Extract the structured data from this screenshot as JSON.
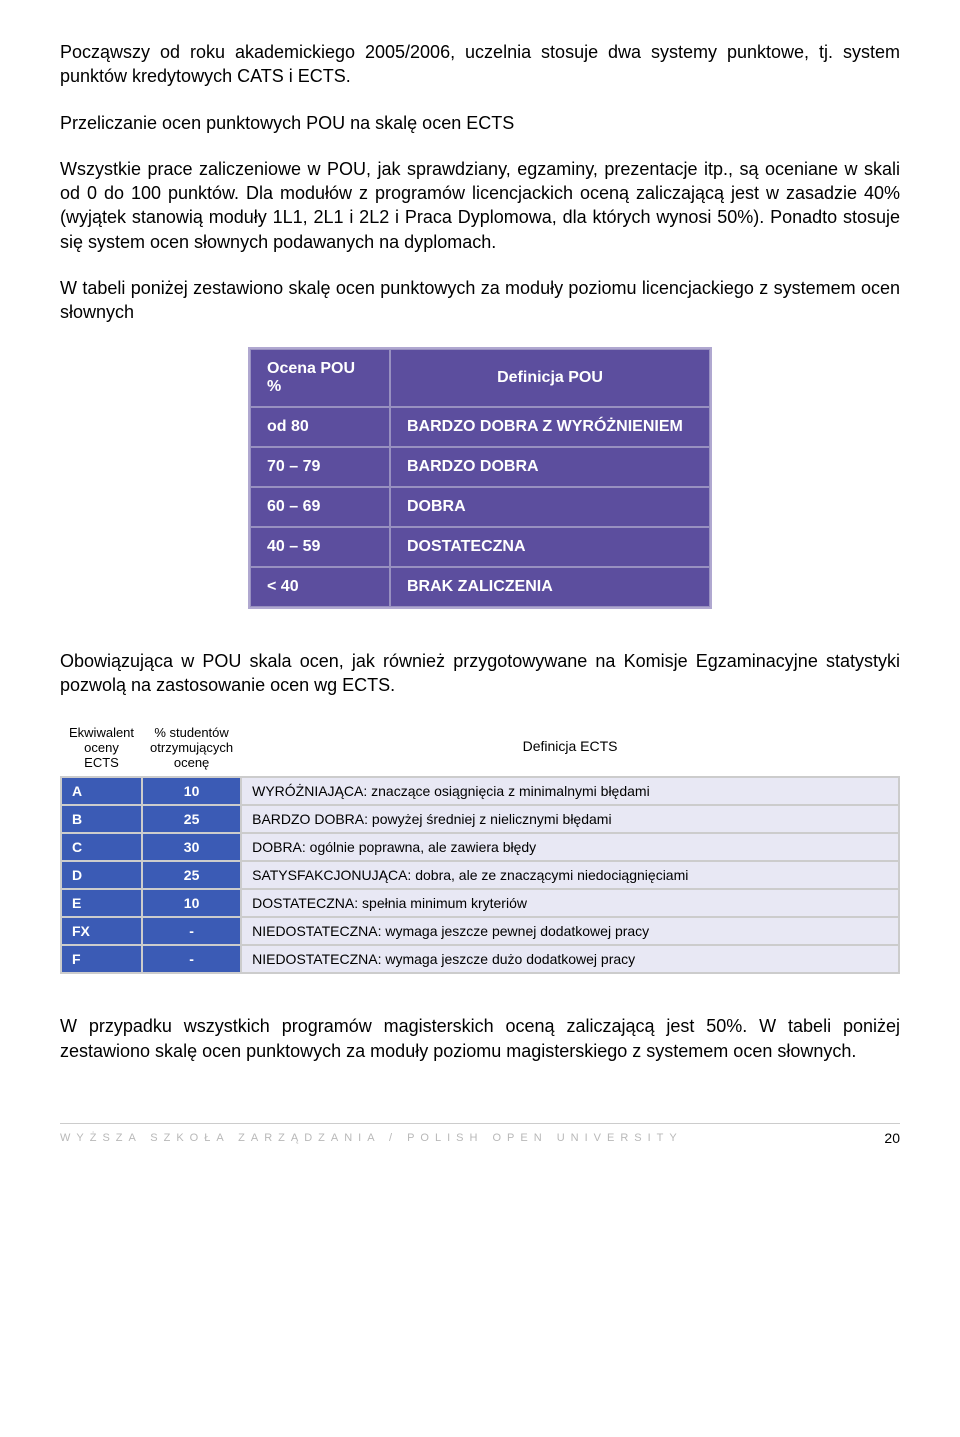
{
  "paragraphs": {
    "p1": "Począwszy od roku akademickiego 2005/2006, uczelnia stosuje dwa systemy punktowe, tj. system punktów kredytowych CATS i ECTS.",
    "p2": "Przeliczanie ocen punktowych POU na skalę ocen ECTS",
    "p3": "Wszystkie prace zaliczeniowe w POU, jak sprawdziany, egzaminy, prezentacje itp., są oceniane w skali od 0 do 100 punktów. Dla modułów z programów licencjackich oceną zaliczającą jest w zasadzie 40% (wyjątek stanowią moduły 1L1, 2L1 i 2L2 i Praca Dyplomowa, dla których wynosi 50%). Ponadto stosuje się system ocen słownych podawanych na dyplomach.",
    "p4": "W tabeli poniżej zestawiono skalę ocen punktowych za moduły poziomu licencjackiego z systemem ocen słownych",
    "p5": "Obowiązująca w POU skala ocen, jak również przygotowywane na Komisje Egzaminacyjne statystyki pozwolą na zastosowanie ocen wg ECTS.",
    "p6": "W przypadku wszystkich programów magisterskich oceną zaliczającą jest 50%. W tabeli poniżej zestawiono skalę ocen punktowych za moduły poziomu magisterskiego z systemem ocen słownych."
  },
  "pou_table": {
    "header": {
      "col1": "Ocena POU %",
      "col2": "Definicja POU"
    },
    "rows": [
      {
        "range": "od  80",
        "def": "BARDZO DOBRA Z WYRÓŻNIENIEM"
      },
      {
        "range": "70 – 79",
        "def": "BARDZO DOBRA"
      },
      {
        "range": "60 – 69",
        "def": "DOBRA"
      },
      {
        "range": "40 – 59",
        "def": "DOSTATECZNA"
      },
      {
        "range": "< 40",
        "def": "BRAK ZALICZENIA"
      }
    ],
    "style": {
      "header_bg": "#5c4e9e",
      "header_color": "#ffffff",
      "cell_bg": "#5c4e9e",
      "cell_color": "#ffffff",
      "border_color": "#9890c0",
      "font_size": 16
    }
  },
  "ects_table": {
    "header": {
      "col1": "Ekwiwalent oceny ECTS",
      "col2": "% studentów otrzymujących ocenę",
      "col3": "Definicja ECTS"
    },
    "rows": [
      {
        "grade": "A",
        "pct": "10",
        "def": "WYRÓŻNIAJĄCA: znaczące osiągnięcia z minimalnymi błędami"
      },
      {
        "grade": "B",
        "pct": "25",
        "def": "BARDZO DOBRA: powyżej średniej z nielicznymi błędami"
      },
      {
        "grade": "C",
        "pct": "30",
        "def": "DOBRA: ogólnie poprawna, ale zawiera błędy"
      },
      {
        "grade": "D",
        "pct": "25",
        "def": "SATYSFAKCJONUJĄCA: dobra, ale ze znaczącymi niedociągnięciami"
      },
      {
        "grade": "E",
        "pct": "10",
        "def": "DOSTATECZNA: spełnia minimum kryteriów"
      },
      {
        "grade": "FX",
        "pct": "-",
        "def": "NIEDOSTATECZNA: wymaga jeszcze pewnej dodatkowej pracy"
      },
      {
        "grade": "F",
        "pct": "-",
        "def": "NIEDOSTATECZNA: wymaga jeszcze dużo dodatkowej pracy"
      }
    ],
    "style": {
      "grade_bg": "#3b5bb5",
      "grade_color": "#ffffff",
      "def_bg": "#e8e8f4",
      "def_color": "#000000",
      "border_color": "#cccccc",
      "font_size": 14
    }
  },
  "footer": {
    "text": "WYŻSZA SZKOŁA ZARZĄDZANIA / POLISH OPEN UNIVERSITY",
    "page": "20"
  }
}
